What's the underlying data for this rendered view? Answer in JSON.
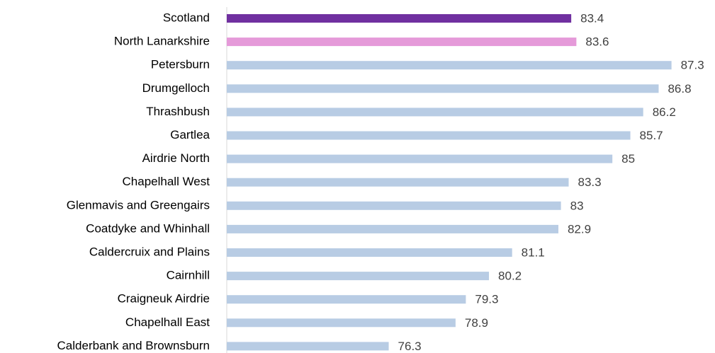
{
  "chart_data": {
    "type": "barh",
    "categories": [
      "Scotland",
      "North Lanarkshire",
      "Petersburn",
      "Drumgelloch",
      "Thrashbush",
      "Gartlea",
      "Airdrie North",
      "Chapelhall West",
      "Glenmavis and Greengairs",
      "Coatdyke and Whinhall",
      "Caldercruix and Plains",
      "Cairnhill",
      "Craigneuk Airdrie",
      "Chapelhall East",
      "Calderbank and Brownsburn"
    ],
    "values": [
      83.4,
      83.6,
      87.3,
      86.8,
      86.2,
      85.7,
      85,
      83.3,
      83,
      82.9,
      81.1,
      80.2,
      79.3,
      78.9,
      76.3
    ],
    "colors": [
      "#7030a0",
      "#e59ad9",
      "#b8cce4",
      "#b8cce4",
      "#b8cce4",
      "#b8cce4",
      "#b8cce4",
      "#b8cce4",
      "#b8cce4",
      "#b8cce4",
      "#b8cce4",
      "#b8cce4",
      "#b8cce4",
      "#b8cce4",
      "#b8cce4"
    ],
    "xlim": [
      70,
      88
    ]
  }
}
